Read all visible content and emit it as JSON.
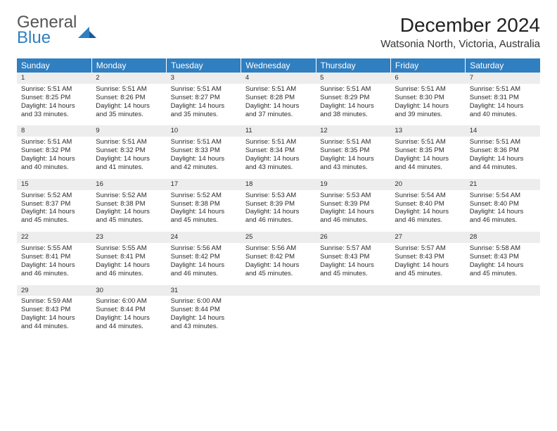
{
  "brand": {
    "line1": "General",
    "line2": "Blue"
  },
  "colors": {
    "header_bg": "#2f7fc1",
    "header_fg": "#ffffff",
    "daynum_bg": "#ededed",
    "border_top": "#2f7fc1",
    "text": "#2b2b2b",
    "brand_gray": "#555555",
    "brand_blue": "#2f7fc1"
  },
  "typography": {
    "body_fontsize": 9.5,
    "header_fontsize": 12,
    "month_fontsize": 28,
    "location_fontsize": 15
  },
  "title": {
    "month": "December 2024",
    "location": "Watsonia North, Victoria, Australia"
  },
  "weekdays": [
    "Sunday",
    "Monday",
    "Tuesday",
    "Wednesday",
    "Thursday",
    "Friday",
    "Saturday"
  ],
  "weeks": [
    [
      {
        "n": "1",
        "sr": "5:51 AM",
        "ss": "8:25 PM",
        "dl": "14 hours and 33 minutes."
      },
      {
        "n": "2",
        "sr": "5:51 AM",
        "ss": "8:26 PM",
        "dl": "14 hours and 35 minutes."
      },
      {
        "n": "3",
        "sr": "5:51 AM",
        "ss": "8:27 PM",
        "dl": "14 hours and 35 minutes."
      },
      {
        "n": "4",
        "sr": "5:51 AM",
        "ss": "8:28 PM",
        "dl": "14 hours and 37 minutes."
      },
      {
        "n": "5",
        "sr": "5:51 AM",
        "ss": "8:29 PM",
        "dl": "14 hours and 38 minutes."
      },
      {
        "n": "6",
        "sr": "5:51 AM",
        "ss": "8:30 PM",
        "dl": "14 hours and 39 minutes."
      },
      {
        "n": "7",
        "sr": "5:51 AM",
        "ss": "8:31 PM",
        "dl": "14 hours and 40 minutes."
      }
    ],
    [
      {
        "n": "8",
        "sr": "5:51 AM",
        "ss": "8:32 PM",
        "dl": "14 hours and 40 minutes."
      },
      {
        "n": "9",
        "sr": "5:51 AM",
        "ss": "8:32 PM",
        "dl": "14 hours and 41 minutes."
      },
      {
        "n": "10",
        "sr": "5:51 AM",
        "ss": "8:33 PM",
        "dl": "14 hours and 42 minutes."
      },
      {
        "n": "11",
        "sr": "5:51 AM",
        "ss": "8:34 PM",
        "dl": "14 hours and 43 minutes."
      },
      {
        "n": "12",
        "sr": "5:51 AM",
        "ss": "8:35 PM",
        "dl": "14 hours and 43 minutes."
      },
      {
        "n": "13",
        "sr": "5:51 AM",
        "ss": "8:35 PM",
        "dl": "14 hours and 44 minutes."
      },
      {
        "n": "14",
        "sr": "5:51 AM",
        "ss": "8:36 PM",
        "dl": "14 hours and 44 minutes."
      }
    ],
    [
      {
        "n": "15",
        "sr": "5:52 AM",
        "ss": "8:37 PM",
        "dl": "14 hours and 45 minutes."
      },
      {
        "n": "16",
        "sr": "5:52 AM",
        "ss": "8:38 PM",
        "dl": "14 hours and 45 minutes."
      },
      {
        "n": "17",
        "sr": "5:52 AM",
        "ss": "8:38 PM",
        "dl": "14 hours and 45 minutes."
      },
      {
        "n": "18",
        "sr": "5:53 AM",
        "ss": "8:39 PM",
        "dl": "14 hours and 46 minutes."
      },
      {
        "n": "19",
        "sr": "5:53 AM",
        "ss": "8:39 PM",
        "dl": "14 hours and 46 minutes."
      },
      {
        "n": "20",
        "sr": "5:54 AM",
        "ss": "8:40 PM",
        "dl": "14 hours and 46 minutes."
      },
      {
        "n": "21",
        "sr": "5:54 AM",
        "ss": "8:40 PM",
        "dl": "14 hours and 46 minutes."
      }
    ],
    [
      {
        "n": "22",
        "sr": "5:55 AM",
        "ss": "8:41 PM",
        "dl": "14 hours and 46 minutes."
      },
      {
        "n": "23",
        "sr": "5:55 AM",
        "ss": "8:41 PM",
        "dl": "14 hours and 46 minutes."
      },
      {
        "n": "24",
        "sr": "5:56 AM",
        "ss": "8:42 PM",
        "dl": "14 hours and 46 minutes."
      },
      {
        "n": "25",
        "sr": "5:56 AM",
        "ss": "8:42 PM",
        "dl": "14 hours and 45 minutes."
      },
      {
        "n": "26",
        "sr": "5:57 AM",
        "ss": "8:43 PM",
        "dl": "14 hours and 45 minutes."
      },
      {
        "n": "27",
        "sr": "5:57 AM",
        "ss": "8:43 PM",
        "dl": "14 hours and 45 minutes."
      },
      {
        "n": "28",
        "sr": "5:58 AM",
        "ss": "8:43 PM",
        "dl": "14 hours and 45 minutes."
      }
    ],
    [
      {
        "n": "29",
        "sr": "5:59 AM",
        "ss": "8:43 PM",
        "dl": "14 hours and 44 minutes."
      },
      {
        "n": "30",
        "sr": "6:00 AM",
        "ss": "8:44 PM",
        "dl": "14 hours and 44 minutes."
      },
      {
        "n": "31",
        "sr": "6:00 AM",
        "ss": "8:44 PM",
        "dl": "14 hours and 43 minutes."
      },
      null,
      null,
      null,
      null
    ]
  ],
  "labels": {
    "sunrise": "Sunrise:",
    "sunset": "Sunset:",
    "daylight": "Daylight:"
  }
}
